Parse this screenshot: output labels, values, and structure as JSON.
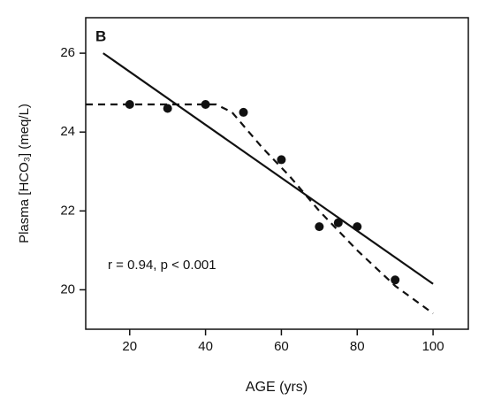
{
  "chart_data": {
    "type": "scatter",
    "panel_label": "B",
    "xlabel": "AGE (yrs)",
    "ylabel": "Plasma [HCO₃] (meq/L)",
    "annotation": "r = 0.94, p < 0.001",
    "xlim": [
      8.4,
      109.3
    ],
    "ylim": [
      19.0,
      26.9
    ],
    "xticks": [
      20,
      40,
      60,
      80,
      100
    ],
    "yticks": [
      20,
      22,
      24,
      26
    ],
    "grid": false,
    "series": [
      {
        "style": "markers",
        "color": "#111111",
        "x": [
          20,
          30,
          40,
          50,
          60,
          70,
          75,
          80,
          90
        ],
        "values": [
          24.7,
          24.6,
          24.7,
          24.5,
          23.3,
          21.6,
          21.7,
          21.6,
          20.25
        ]
      },
      {
        "style": "solid",
        "color": "#111111",
        "x": [
          13,
          100
        ],
        "values": [
          26.0,
          20.15
        ]
      },
      {
        "style": "dashed",
        "color": "#111111",
        "x": [
          8.4,
          42.8,
          47,
          55,
          62,
          70,
          80,
          90,
          100
        ],
        "values": [
          24.7,
          24.7,
          24.5,
          23.6,
          22.9,
          22.0,
          21.0,
          20.1,
          19.4
        ]
      }
    ]
  }
}
